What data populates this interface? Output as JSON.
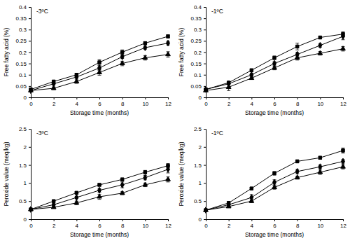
{
  "chart_data": [
    {
      "type": "line",
      "title": "-3ºC",
      "x_label": "Storage time (months)",
      "y_label": "Free fatty acid (%)",
      "x": [
        0,
        2,
        4,
        6,
        8,
        10,
        12
      ],
      "xlim": [
        0,
        12
      ],
      "xticks": [
        0,
        2,
        4,
        6,
        8,
        10,
        12
      ],
      "ylim": [
        0,
        0.4
      ],
      "yticks": [
        0,
        0.05,
        0.1,
        0.15,
        0.2,
        0.25,
        0.3,
        0.35,
        0.4
      ],
      "series": [
        {
          "color": "#000000",
          "marker": "square",
          "values": [
            0.035,
            0.07,
            0.1,
            0.155,
            0.2,
            0.24,
            0.27
          ],
          "errors": [
            0.005,
            0.006,
            0.006,
            0.012,
            0.01,
            0.006,
            0.007
          ]
        },
        {
          "color": "#000000",
          "marker": "diamond",
          "values": [
            0.03,
            0.06,
            0.09,
            0.13,
            0.18,
            0.22,
            0.24
          ],
          "errors": [
            0.004,
            0.005,
            0.006,
            0.01,
            0.008,
            0.007,
            0.008
          ]
        },
        {
          "color": "#000000",
          "marker": "triangle",
          "values": [
            0.03,
            0.04,
            0.07,
            0.11,
            0.15,
            0.175,
            0.19
          ],
          "errors": [
            0.004,
            0.006,
            0.008,
            0.012,
            0.01,
            0.01,
            0.012
          ]
        }
      ]
    },
    {
      "type": "line",
      "title": "-1ºC",
      "x_label": "Storage time (months)",
      "y_label": "Free fatty acid (%)",
      "x": [
        0,
        2,
        4,
        6,
        8,
        10,
        12
      ],
      "xlim": [
        0,
        12
      ],
      "xticks": [
        0,
        2,
        4,
        6,
        8,
        10,
        12
      ],
      "ylim": [
        0,
        0.4
      ],
      "yticks": [
        0,
        0.05,
        0.1,
        0.15,
        0.2,
        0.25,
        0.3,
        0.35,
        0.4
      ],
      "series": [
        {
          "color": "#000000",
          "marker": "square",
          "values": [
            0.035,
            0.065,
            0.12,
            0.175,
            0.225,
            0.265,
            0.28
          ],
          "errors": [
            0.005,
            0.006,
            0.006,
            0.008,
            0.015,
            0.006,
            0.01
          ]
        },
        {
          "color": "#000000",
          "marker": "diamond",
          "values": [
            0.035,
            0.06,
            0.1,
            0.15,
            0.19,
            0.23,
            0.27
          ],
          "errors": [
            0.004,
            0.005,
            0.006,
            0.008,
            0.01,
            0.008,
            0.015
          ]
        },
        {
          "color": "#000000",
          "marker": "triangle",
          "values": [
            0.03,
            0.045,
            0.085,
            0.13,
            0.175,
            0.195,
            0.215
          ],
          "errors": [
            0.004,
            0.015,
            0.006,
            0.008,
            0.01,
            0.008,
            0.01
          ]
        }
      ]
    },
    {
      "type": "line",
      "title": "-3ºC",
      "x_label": "Storage time (months)",
      "y_label": "Peroxide value (meq/kg)",
      "x": [
        0,
        2,
        4,
        6,
        8,
        10,
        12
      ],
      "xlim": [
        0,
        12
      ],
      "xticks": [
        0,
        2,
        4,
        6,
        8,
        10,
        12
      ],
      "ylim": [
        0,
        2.5
      ],
      "yticks": [
        0,
        0.5,
        1,
        1.5,
        2,
        2.5
      ],
      "series": [
        {
          "color": "#000000",
          "marker": "square",
          "values": [
            0.27,
            0.5,
            0.73,
            0.95,
            1.1,
            1.3,
            1.48
          ],
          "errors": [
            0.02,
            0.03,
            0.03,
            0.03,
            0.04,
            0.05,
            0.06
          ]
        },
        {
          "color": "#000000",
          "marker": "diamond",
          "values": [
            0.27,
            0.4,
            0.6,
            0.8,
            0.95,
            1.15,
            1.38
          ],
          "errors": [
            0.02,
            0.03,
            0.03,
            0.05,
            0.08,
            0.06,
            0.1
          ]
        },
        {
          "color": "#000000",
          "marker": "triangle",
          "values": [
            0.27,
            0.33,
            0.45,
            0.62,
            0.72,
            0.95,
            1.1
          ],
          "errors": [
            0.02,
            0.03,
            0.05,
            0.07,
            0.04,
            0.05,
            0.07
          ]
        }
      ]
    },
    {
      "type": "line",
      "title": "-1ºC",
      "x_label": "Storage time (months)",
      "y_label": "Peroxide value (meq/kg)",
      "x": [
        0,
        2,
        4,
        6,
        8,
        10,
        12
      ],
      "xlim": [
        0,
        12
      ],
      "xticks": [
        0,
        2,
        4,
        6,
        8,
        10,
        12
      ],
      "ylim": [
        0,
        2.5
      ],
      "yticks": [
        0,
        0.5,
        1,
        1.5,
        2,
        2.5
      ],
      "series": [
        {
          "color": "#000000",
          "marker": "square",
          "values": [
            0.25,
            0.45,
            0.85,
            1.27,
            1.6,
            1.7,
            1.9
          ],
          "errors": [
            0.02,
            0.03,
            0.03,
            0.05,
            0.04,
            0.04,
            0.07
          ]
        },
        {
          "color": "#000000",
          "marker": "diamond",
          "values": [
            0.25,
            0.4,
            0.6,
            1.02,
            1.32,
            1.45,
            1.6
          ],
          "errors": [
            0.02,
            0.03,
            0.08,
            0.07,
            0.06,
            0.05,
            0.05
          ]
        },
        {
          "color": "#000000",
          "marker": "triangle",
          "values": [
            0.25,
            0.35,
            0.5,
            0.88,
            1.15,
            1.3,
            1.45
          ],
          "errors": [
            0.02,
            0.03,
            0.04,
            0.05,
            0.04,
            0.06,
            0.06
          ]
        }
      ]
    }
  ]
}
